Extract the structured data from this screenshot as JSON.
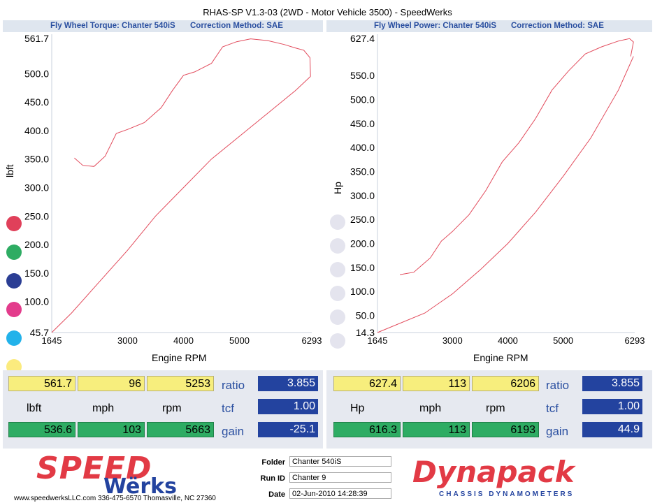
{
  "title": "RHAS-SP V1.3-03  (2WD - Motor Vehicle 3500) - SpeedWerks",
  "left": {
    "header_chart": "Fly Wheel Torque: Chanter 540iS",
    "header_correction": "Correction Method: SAE",
    "ylabel": "lbft",
    "xlabel": "Engine RPM",
    "values": {
      "peak": "561.7",
      "mph": "96",
      "rpm": "5253",
      "ratio": "3.855",
      "unit": "lbft",
      "unit_mph": "mph",
      "unit_rpm": "rpm",
      "tcf": "1.00",
      "b1": "536.6",
      "b2": "103",
      "b3": "5663",
      "gain": "-25.1"
    }
  },
  "right": {
    "header_chart": "Fly Wheel Power: Chanter 540iS",
    "header_correction": "Correction Method: SAE",
    "ylabel": "Hp",
    "xlabel": "Engine RPM",
    "values": {
      "peak": "627.4",
      "mph": "113",
      "rpm": "6206",
      "ratio": "3.855",
      "unit": "Hp",
      "unit_mph": "mph",
      "unit_rpm": "rpm",
      "tcf": "1.00",
      "b1": "616.3",
      "b2": "113",
      "b3": "6193",
      "gain": "44.9"
    }
  },
  "labels": {
    "ratio": "ratio",
    "tcf": "tcf",
    "gain": "gain"
  },
  "dots_left": [
    "#e0405a",
    "#2eac63",
    "#2b3e94",
    "#e33c8c",
    "#22b2ea",
    "#fbeb7e"
  ],
  "dots_right": [
    "#e4e4ee",
    "#e4e4ee",
    "#e4e4ee",
    "#e4e4ee",
    "#e4e4ee",
    "#e4e4ee"
  ],
  "footer": {
    "speed": "SPEED",
    "werks": "Wërks",
    "website": "www.speedwerksLLC.com  336-475-6570 Thomasville, NC 27360",
    "folder_label": "Folder",
    "folder_value": "Chanter 540iS",
    "runid_label": "Run ID",
    "runid_value": "Chanter 9",
    "date_label": "Date",
    "date_value": "02-Jun-2010  14:28:39",
    "dynapack": "Dynapack",
    "dynapack_sub": "CHASSIS DYNAMOMETERS"
  },
  "chart_data": [
    {
      "type": "line",
      "title": "Fly Wheel Torque: Chanter 540iS",
      "xlabel": "Engine RPM",
      "ylabel": "lbft",
      "xlim": [
        1645,
        6293
      ],
      "ylim": [
        45.7,
        561.7
      ],
      "xticks": [
        "1645",
        "3000",
        "4000",
        "5000",
        "6293"
      ],
      "yticks": [
        "561.7",
        "500.0",
        "450.0",
        "400.0",
        "350.0",
        "300.0",
        "250.0",
        "200.0",
        "150.0",
        "100.0",
        "45.7"
      ],
      "color": "#e24b5c",
      "series": [
        {
          "x": [
            2050,
            2200,
            2400,
            2600,
            2800,
            3000,
            3300,
            3600,
            3800,
            4000,
            4200,
            4500,
            4700,
            4950,
            5200,
            5500,
            5800,
            6000,
            6150,
            6260,
            6270
          ],
          "y": [
            352,
            339,
            337,
            355,
            395,
            402,
            414,
            440,
            470,
            497,
            503,
            518,
            547,
            556,
            561,
            558,
            551,
            545,
            541,
            528,
            495
          ]
        },
        {
          "x": [
            1645,
            2000,
            2500,
            3000,
            3500,
            4000,
            4500,
            5000,
            5500,
            6000,
            6270
          ],
          "y": [
            45.7,
            80,
            135,
            190,
            250,
            300,
            350,
            390,
            430,
            470,
            495
          ]
        }
      ]
    },
    {
      "type": "line",
      "title": "Fly Wheel Power: Chanter 540iS",
      "xlabel": "Engine RPM",
      "ylabel": "Hp",
      "xlim": [
        1645,
        6293
      ],
      "ylim": [
        14.3,
        627.4
      ],
      "xticks": [
        "1645",
        "3000",
        "4000",
        "5000",
        "6293"
      ],
      "yticks": [
        "627.4",
        "550.0",
        "500.0",
        "450.0",
        "400.0",
        "350.0",
        "300.0",
        "250.0",
        "200.0",
        "150.0",
        "100.0",
        "50.0",
        "14.3"
      ],
      "color": "#e24b5c",
      "series": [
        {
          "x": [
            2050,
            2300,
            2600,
            2800,
            3000,
            3300,
            3600,
            3900,
            4200,
            4500,
            4800,
            5100,
            5400,
            5700,
            6000,
            6200,
            6270,
            6220
          ],
          "y": [
            135,
            140,
            170,
            205,
            225,
            260,
            310,
            370,
            410,
            460,
            520,
            560,
            595,
            610,
            622,
            627,
            620,
            590
          ]
        },
        {
          "x": [
            1645,
            2500,
            3000,
            3500,
            4000,
            4500,
            5000,
            5500,
            6000,
            6270
          ],
          "y": [
            14.3,
            55,
            95,
            145,
            200,
            265,
            340,
            420,
            520,
            590
          ]
        }
      ]
    }
  ]
}
